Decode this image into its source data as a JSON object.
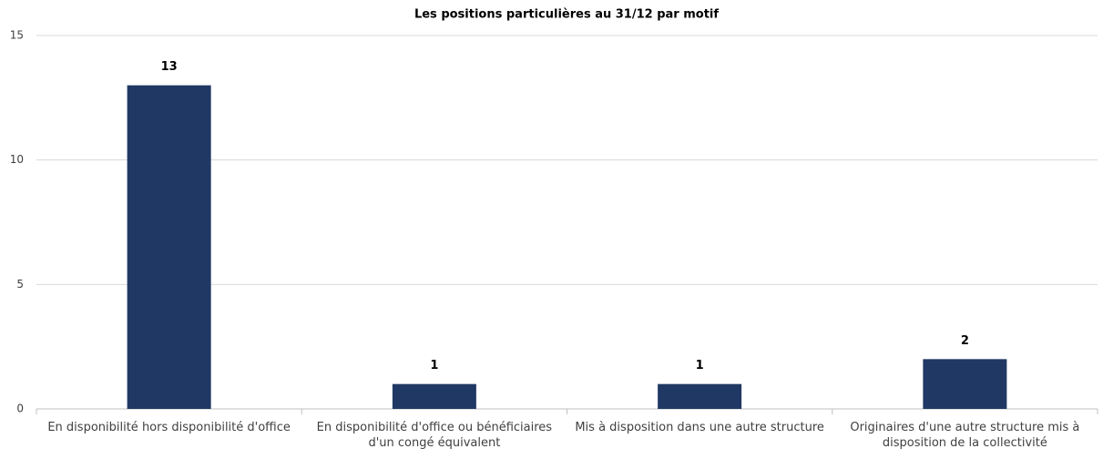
{
  "chart_data": {
    "type": "bar",
    "title": "Les positions particulières au 31/12 par motif",
    "categories": [
      "En disponibilité hors disponibilité d'office",
      "En disponibilité d'office ou bénéficiaires d'un congé équivalent",
      "Mis à disposition dans une autre structure",
      "Originaires d'une autre structure mis à disposition de la collectivité"
    ],
    "values": [
      13,
      1,
      1,
      2
    ],
    "color": "#203864",
    "ylim": [
      0,
      15
    ],
    "yticks": [
      0,
      5,
      10,
      15
    ],
    "grid": true
  }
}
